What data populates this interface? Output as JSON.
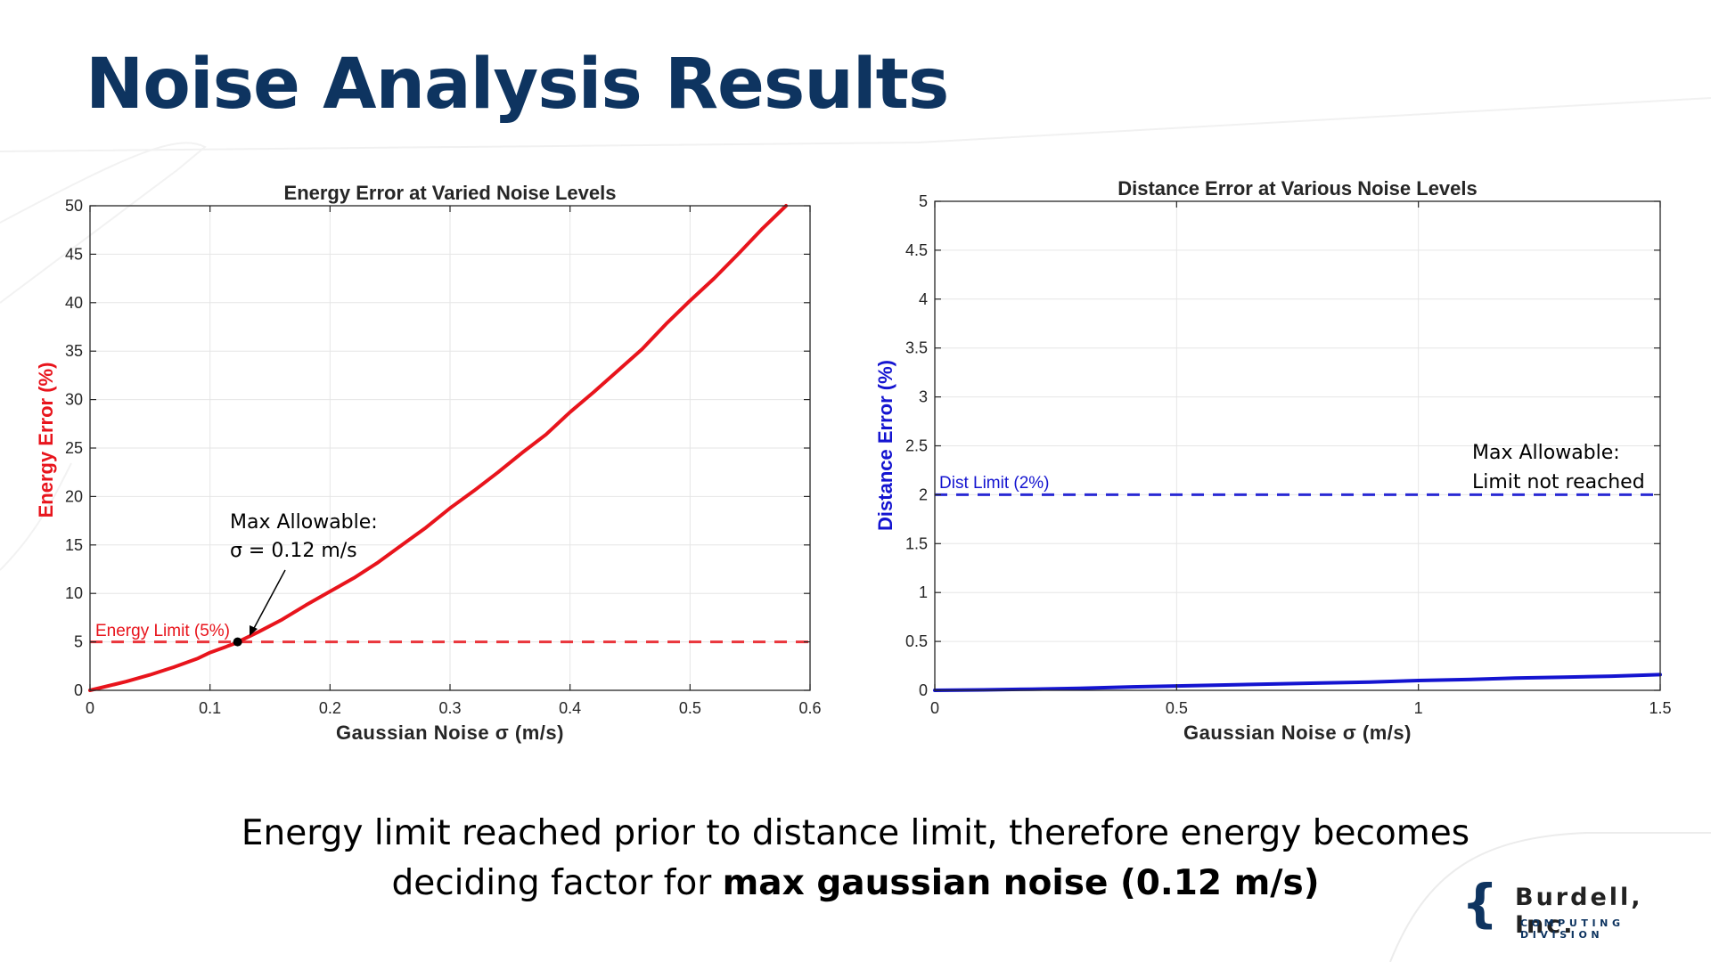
{
  "slide": {
    "title": "Noise Analysis Results",
    "conclusion": {
      "line1": "Energy limit reached prior to distance limit, therefore energy becomes",
      "line2_prefix": "deciding factor for ",
      "line2_bold": "max gaussian noise (0.12 m/s)"
    },
    "logo": {
      "name": "Burdell, Inc.",
      "subtitle": "COMPUTING DIVISION",
      "brace": "{"
    }
  },
  "colors": {
    "title": "#0e3460",
    "energy": "#e8141c",
    "distance": "#1414d0",
    "grid": "#e6e6e6"
  },
  "chart_data": [
    {
      "id": "energy",
      "type": "line",
      "title": "Energy Error at Varied Noise Levels",
      "xlabel": "Gaussian  Noise  σ  (m/s)",
      "ylabel": "Energy Error (%)",
      "xlim": [
        0,
        0.6
      ],
      "ylim": [
        0,
        50
      ],
      "xticks": [
        0,
        0.1,
        0.2,
        0.3,
        0.4,
        0.5,
        0.6
      ],
      "xtick_labels": [
        "0",
        "0.1",
        "0.2",
        "0.3",
        "0.4",
        "0.5",
        "0.6"
      ],
      "yticks": [
        0,
        5,
        10,
        15,
        20,
        25,
        30,
        35,
        40,
        45,
        50
      ],
      "ytick_labels": [
        "0",
        "5",
        "10",
        "15",
        "20",
        "25",
        "30",
        "35",
        "40",
        "45",
        "50"
      ],
      "grid": true,
      "series": [
        {
          "color": "#e8141c",
          "x": [
            0,
            0.02,
            0.03,
            0.05,
            0.07,
            0.09,
            0.1,
            0.12,
            0.14,
            0.16,
            0.18,
            0.2,
            0.22,
            0.24,
            0.26,
            0.28,
            0.3,
            0.32,
            0.34,
            0.36,
            0.38,
            0.4,
            0.42,
            0.44,
            0.46,
            0.48,
            0.5,
            0.52,
            0.54,
            0.56,
            0.58
          ],
          "y": [
            0,
            0.6,
            0.9,
            1.6,
            2.4,
            3.3,
            3.9,
            4.8,
            6.0,
            7.3,
            8.8,
            10.2,
            11.6,
            13.2,
            15.0,
            16.8,
            18.8,
            20.6,
            22.5,
            24.5,
            26.4,
            28.7,
            30.8,
            33.0,
            35.2,
            37.8,
            40.2,
            42.5,
            45.0,
            47.6,
            50.0
          ]
        }
      ],
      "limit": {
        "value": 5,
        "label": "Energy Limit (5%)",
        "color": "#e8141c"
      },
      "marker": {
        "x": 0.123,
        "y": 5
      },
      "annotation": {
        "line1": "Max Allowable:",
        "line2": "σ = 0.12 m/s",
        "at_x": 0.12,
        "at_y": 15
      }
    },
    {
      "id": "distance",
      "type": "line",
      "title": "Distance Error at Various Noise Levels",
      "xlabel": "Gaussian  Noise  σ  (m/s)",
      "ylabel": "Distance Error (%)",
      "xlim": [
        0,
        1.5
      ],
      "ylim": [
        0,
        5
      ],
      "xticks": [
        0,
        0.5,
        1,
        1.5
      ],
      "xtick_labels": [
        "0",
        "0.5",
        "1",
        "1.5"
      ],
      "yticks": [
        0,
        0.5,
        1,
        1.5,
        2,
        2.5,
        3,
        3.5,
        4,
        4.5,
        5
      ],
      "ytick_labels": [
        "0",
        "0.5",
        "1",
        "1.5",
        "2",
        "2.5",
        "3",
        "3.5",
        "4",
        "4.5",
        "5"
      ],
      "grid": true,
      "series": [
        {
          "color": "#1414d0",
          "x": [
            0,
            0.1,
            0.2,
            0.3,
            0.4,
            0.5,
            0.6,
            0.7,
            0.8,
            0.9,
            1.0,
            1.1,
            1.2,
            1.3,
            1.4,
            1.5
          ],
          "y": [
            0,
            0.005,
            0.012,
            0.02,
            0.035,
            0.045,
            0.055,
            0.065,
            0.075,
            0.085,
            0.1,
            0.11,
            0.125,
            0.135,
            0.145,
            0.16
          ]
        }
      ],
      "limit": {
        "value": 2,
        "label": "Dist Limit (2%)",
        "color": "#1414d0"
      },
      "annotation": {
        "line1": "Max Allowable:",
        "line2": "Limit not reached",
        "at_x": 1.11,
        "at_y": 2.3
      }
    }
  ]
}
